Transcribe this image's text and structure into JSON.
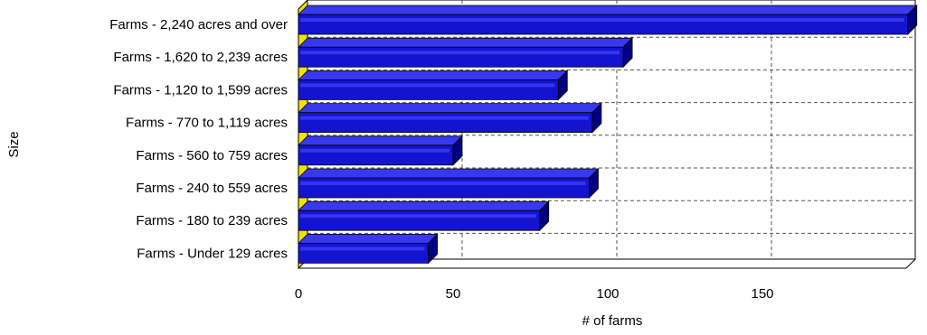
{
  "chart_data": {
    "type": "bar",
    "orientation": "horizontal",
    "style": "3d",
    "categories": [
      "Farms - 2,240 acres and over",
      "Farms - 1,620 to 2,239 acres",
      "Farms - 1,120 to 1,599 acres",
      "Farms - 770 to 1,119 acres",
      "Farms - 560 to 759 acres",
      "Farms - 240 to 559 acres",
      "Farms - 180 to 239 acres",
      "Farms - Under 129 acres"
    ],
    "values": [
      197,
      105,
      84,
      95,
      50,
      94,
      78,
      42
    ],
    "xlabel": "# of farms",
    "ylabel": "Size",
    "xlim": [
      0,
      200
    ],
    "xticks": [
      "0",
      "50",
      "100",
      "150"
    ],
    "grid": "vertical dashed",
    "legend": "none",
    "colors": {
      "bar_front": "#1414d0",
      "bar_top": "#3838f0",
      "bar_side": "#000080",
      "floor": "#f2e300"
    }
  }
}
